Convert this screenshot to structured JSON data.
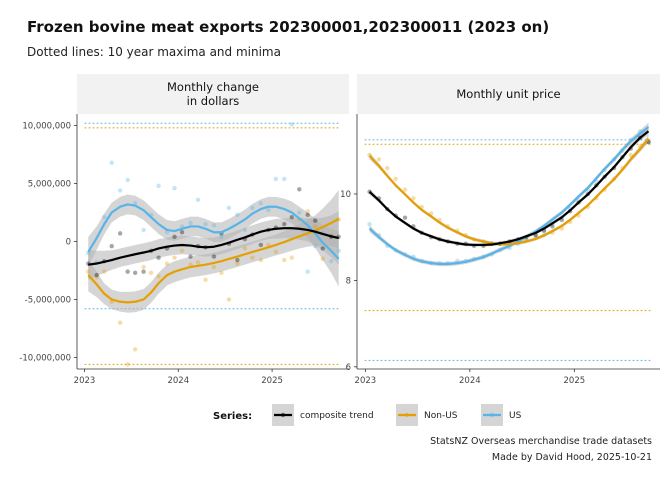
{
  "title": "Frozen bovine meat exports 202300001,202300011 (2023 on)",
  "subtitle": "Dotted lines: 10 year maxima and minima",
  "caption": [
    "StatsNZ Overseas merchandise trade datasets",
    "Made by David Hood, 2025-10-21"
  ],
  "colors": {
    "composite trend": "#000000",
    "Non-US": "#E69F00",
    "US": "#56B4E9",
    "band": "#b3b3b3",
    "strip": "#f2f2f2",
    "panel": "#ffffff"
  },
  "legend": {
    "title": "Series:",
    "items": [
      "composite trend",
      "Non-US",
      "US"
    ],
    "position": "bottom"
  },
  "chart_data": [
    {
      "type": "scatter",
      "panel_title": "Monthly change in dollars",
      "panel_title_lines": [
        "Monthly change",
        "in dollars"
      ],
      "x_ticks": [
        "2023",
        "2024",
        "2025"
      ],
      "x_tick_values": [
        2023,
        2024,
        2025
      ],
      "xlim": [
        2022.92,
        2025.82
      ],
      "y_ticks": [
        "-10,000,000",
        "-5,000,000",
        "0",
        "5,000,000",
        "10,000,000"
      ],
      "y_tick_values": [
        -10000000,
        -5000000,
        0,
        5000000,
        10000000
      ],
      "ylim": [
        -11000000,
        11000000
      ],
      "grid": false,
      "x": [
        2023.04,
        2023.13,
        2023.21,
        2023.29,
        2023.38,
        2023.46,
        2023.54,
        2023.63,
        2023.71,
        2023.79,
        2023.88,
        2023.96,
        2024.04,
        2024.13,
        2024.21,
        2024.29,
        2024.38,
        2024.46,
        2024.54,
        2024.63,
        2024.71,
        2024.79,
        2024.88,
        2024.96,
        2025.04,
        2025.13,
        2025.21,
        2025.29,
        2025.38,
        2025.46,
        2025.54,
        2025.63,
        2025.71
      ],
      "series": [
        {
          "name": "composite trend",
          "points": [
            -1900000,
            -2900000,
            -1700000,
            -400000,
            700000,
            -2600000,
            -2700000,
            -2600000,
            -800000,
            -1400000,
            -600000,
            400000,
            800000,
            -1300000,
            -400000,
            -500000,
            -1300000,
            700000,
            -200000,
            -1600000,
            200000,
            600000,
            -300000,
            1000000,
            1200000,
            1500000,
            2100000,
            4500000,
            2300000,
            1800000,
            -600000,
            400000,
            400000
          ],
          "trend": [
            -2000000,
            -1900000,
            -1750000,
            -1600000,
            -1400000,
            -1250000,
            -1100000,
            -950000,
            -800000,
            -600000,
            -450000,
            -350000,
            -300000,
            -350000,
            -450000,
            -500000,
            -450000,
            -300000,
            -100000,
            150000,
            350000,
            600000,
            850000,
            1000000,
            1100000,
            1150000,
            1150000,
            1100000,
            1000000,
            850000,
            650000,
            450000,
            300000
          ],
          "band_halfwidth": [
            1300000,
            1100000,
            950000,
            850000,
            800000,
            800000,
            800000,
            800000,
            800000,
            800000,
            800000,
            800000,
            800000,
            800000,
            800000,
            800000,
            800000,
            800000,
            800000,
            800000,
            800000,
            800000,
            800000,
            800000,
            850000,
            850000,
            900000,
            950000,
            1000000,
            1150000,
            1400000,
            1800000,
            2300000
          ]
        },
        {
          "name": "Non-US",
          "points": [
            -2600000,
            -3100000,
            -2600000,
            -5200000,
            -7000000,
            -10600000,
            -9300000,
            -2200000,
            -2700000,
            -3000000,
            -1900000,
            -1400000,
            -800000,
            -2000000,
            -1800000,
            -3300000,
            -2200000,
            -2700000,
            -5000000,
            -1900000,
            -600000,
            -1400000,
            -1600000,
            -300000,
            -900000,
            -1600000,
            -1400000,
            1900000,
            2600000,
            1300000,
            -1500000,
            500000,
            1900000
          ],
          "trend": [
            -2900000,
            -3700000,
            -4500000,
            -5000000,
            -5200000,
            -5250000,
            -5200000,
            -5000000,
            -4400000,
            -3600000,
            -2900000,
            -2600000,
            -2400000,
            -2200000,
            -2100000,
            -2000000,
            -1850000,
            -1700000,
            -1500000,
            -1300000,
            -1100000,
            -900000,
            -700000,
            -500000,
            -300000,
            -50000,
            200000,
            450000,
            700000,
            950000,
            1250000,
            1600000,
            1950000
          ],
          "band_halfwidth": [
            1400000,
            1100000,
            900000,
            850000,
            850000,
            900000,
            900000,
            900000,
            900000,
            900000,
            900000,
            900000,
            900000,
            900000,
            900000,
            900000,
            900000,
            900000,
            900000,
            900000,
            900000,
            900000,
            900000,
            900000,
            900000,
            950000,
            1000000,
            1050000,
            1150000,
            1300000,
            1600000,
            2000000,
            2500000
          ]
        },
        {
          "name": "US",
          "points": [
            -1000000,
            -1800000,
            2100000,
            6800000,
            4400000,
            5300000,
            3300000,
            1000000,
            2300000,
            4800000,
            800000,
            4600000,
            1300000,
            1600000,
            3600000,
            1500000,
            1400000,
            400000,
            2900000,
            2300000,
            1000000,
            2900000,
            3300000,
            2700000,
            5400000,
            5400000,
            10100000,
            2500000,
            -2600000,
            -400000,
            700000,
            -1700000,
            -800000
          ],
          "trend": [
            -900000,
            300000,
            1500000,
            2500000,
            3000000,
            3200000,
            3100000,
            2700000,
            2100000,
            1500000,
            1000000,
            900000,
            1100000,
            1300000,
            1300000,
            1100000,
            800000,
            800000,
            1100000,
            1500000,
            1900000,
            2400000,
            2800000,
            3000000,
            3000000,
            2800000,
            2500000,
            2000000,
            1400000,
            700000,
            -100000,
            -800000,
            -1500000
          ],
          "band_halfwidth": [
            1300000,
            1000000,
            900000,
            850000,
            850000,
            850000,
            850000,
            850000,
            850000,
            850000,
            850000,
            850000,
            850000,
            850000,
            850000,
            850000,
            850000,
            850000,
            850000,
            850000,
            850000,
            850000,
            850000,
            850000,
            850000,
            900000,
            950000,
            1000000,
            1100000,
            1250000,
            1500000,
            1900000,
            2400000
          ]
        }
      ],
      "reference_lines": [
        {
          "series": "US",
          "kind": "max",
          "y": 10200000
        },
        {
          "series": "Non-US",
          "kind": "max",
          "y": 9800000
        },
        {
          "series": "US",
          "kind": "min",
          "y": -5800000
        },
        {
          "series": "Non-US",
          "kind": "min",
          "y": -10600000
        }
      ]
    },
    {
      "type": "scatter",
      "panel_title": "Monthly unit price",
      "panel_title_lines": [
        "Monthly unit price"
      ],
      "x_ticks": [
        "2023",
        "2024",
        "2025"
      ],
      "x_tick_values": [
        2023,
        2024,
        2025
      ],
      "xlim": [
        2022.92,
        2025.82
      ],
      "y_ticks": [
        "6",
        "8",
        "10"
      ],
      "y_tick_values": [
        6,
        8,
        10
      ],
      "ylim": [
        5.95,
        11.85
      ],
      "grid": false,
      "x": [
        2023.04,
        2023.13,
        2023.21,
        2023.29,
        2023.38,
        2023.46,
        2023.54,
        2023.63,
        2023.71,
        2023.79,
        2023.88,
        2023.96,
        2024.04,
        2024.13,
        2024.21,
        2024.29,
        2024.38,
        2024.46,
        2024.54,
        2024.63,
        2024.71,
        2024.79,
        2024.88,
        2024.96,
        2025.04,
        2025.13,
        2025.21,
        2025.29,
        2025.38,
        2025.46,
        2025.54,
        2025.63,
        2025.71
      ],
      "series": [
        {
          "name": "composite trend",
          "points": [
            10.05,
            9.9,
            9.65,
            9.5,
            9.45,
            9.25,
            9.1,
            9.0,
            8.95,
            8.9,
            8.85,
            8.85,
            8.8,
            8.8,
            8.85,
            8.85,
            8.9,
            8.95,
            9.0,
            9.05,
            9.15,
            9.25,
            9.4,
            9.6,
            9.8,
            10.0,
            10.2,
            10.4,
            10.6,
            10.85,
            11.05,
            11.3,
            11.2
          ],
          "trend": [
            10.05,
            9.85,
            9.65,
            9.48,
            9.33,
            9.2,
            9.1,
            9.02,
            8.95,
            8.9,
            8.86,
            8.83,
            8.82,
            8.82,
            8.83,
            8.86,
            8.9,
            8.95,
            9.02,
            9.1,
            9.2,
            9.32,
            9.46,
            9.62,
            9.8,
            9.99,
            10.19,
            10.4,
            10.62,
            10.85,
            11.08,
            11.3,
            11.45
          ],
          "band_halfwidth": [
            0.07,
            0.05,
            0.04,
            0.04,
            0.04,
            0.04,
            0.04,
            0.04,
            0.04,
            0.04,
            0.04,
            0.04,
            0.04,
            0.04,
            0.04,
            0.04,
            0.04,
            0.04,
            0.04,
            0.04,
            0.04,
            0.04,
            0.04,
            0.04,
            0.04,
            0.04,
            0.04,
            0.04,
            0.05,
            0.05,
            0.06,
            0.07,
            0.09
          ]
        },
        {
          "name": "Non-US",
          "points": [
            10.9,
            10.8,
            10.6,
            10.35,
            10.1,
            9.9,
            9.7,
            9.55,
            9.4,
            9.25,
            9.15,
            9.05,
            8.95,
            8.9,
            8.85,
            8.85,
            8.85,
            8.9,
            8.95,
            9.0,
            9.05,
            9.1,
            9.2,
            9.35,
            9.5,
            9.7,
            9.9,
            10.1,
            10.35,
            10.6,
            10.9,
            11.1,
            11.2
          ],
          "trend": [
            10.88,
            10.65,
            10.42,
            10.2,
            9.99,
            9.8,
            9.63,
            9.48,
            9.34,
            9.22,
            9.11,
            9.02,
            8.95,
            8.9,
            8.86,
            8.84,
            8.84,
            8.86,
            8.9,
            8.96,
            9.04,
            9.14,
            9.26,
            9.4,
            9.56,
            9.74,
            9.93,
            10.13,
            10.34,
            10.56,
            10.8,
            11.04,
            11.28
          ],
          "band_halfwidth": [
            0.08,
            0.06,
            0.05,
            0.04,
            0.04,
            0.04,
            0.04,
            0.04,
            0.04,
            0.04,
            0.04,
            0.04,
            0.04,
            0.04,
            0.04,
            0.04,
            0.04,
            0.04,
            0.04,
            0.04,
            0.04,
            0.04,
            0.04,
            0.04,
            0.04,
            0.04,
            0.04,
            0.04,
            0.05,
            0.05,
            0.06,
            0.07,
            0.09
          ]
        },
        {
          "name": "US",
          "points": [
            9.3,
            9.05,
            8.8,
            8.7,
            8.6,
            8.55,
            8.45,
            8.4,
            8.4,
            8.4,
            8.45,
            8.45,
            8.5,
            8.55,
            8.6,
            8.7,
            8.75,
            8.85,
            8.95,
            9.05,
            9.15,
            9.3,
            9.45,
            9.65,
            9.85,
            10.1,
            10.3,
            10.55,
            10.8,
            11.0,
            11.25,
            11.45,
            11.2
          ],
          "trend": [
            9.2,
            9.0,
            8.84,
            8.7,
            8.59,
            8.5,
            8.44,
            8.4,
            8.38,
            8.38,
            8.4,
            8.43,
            8.48,
            8.54,
            8.62,
            8.71,
            8.8,
            8.9,
            9.01,
            9.13,
            9.26,
            9.41,
            9.57,
            9.75,
            9.94,
            10.14,
            10.36,
            10.58,
            10.8,
            11.02,
            11.22,
            11.4,
            11.55
          ],
          "band_halfwidth": [
            0.08,
            0.06,
            0.05,
            0.05,
            0.05,
            0.05,
            0.05,
            0.05,
            0.05,
            0.05,
            0.05,
            0.05,
            0.05,
            0.05,
            0.05,
            0.05,
            0.05,
            0.05,
            0.05,
            0.05,
            0.05,
            0.05,
            0.05,
            0.05,
            0.05,
            0.05,
            0.05,
            0.05,
            0.06,
            0.06,
            0.07,
            0.08,
            0.1
          ]
        }
      ],
      "reference_lines": [
        {
          "series": "US",
          "kind": "max",
          "y": 11.25
        },
        {
          "series": "Non-US",
          "kind": "max",
          "y": 11.15
        },
        {
          "series": "Non-US",
          "kind": "min",
          "y": 7.3
        },
        {
          "series": "US",
          "kind": "min",
          "y": 6.15
        }
      ]
    }
  ]
}
